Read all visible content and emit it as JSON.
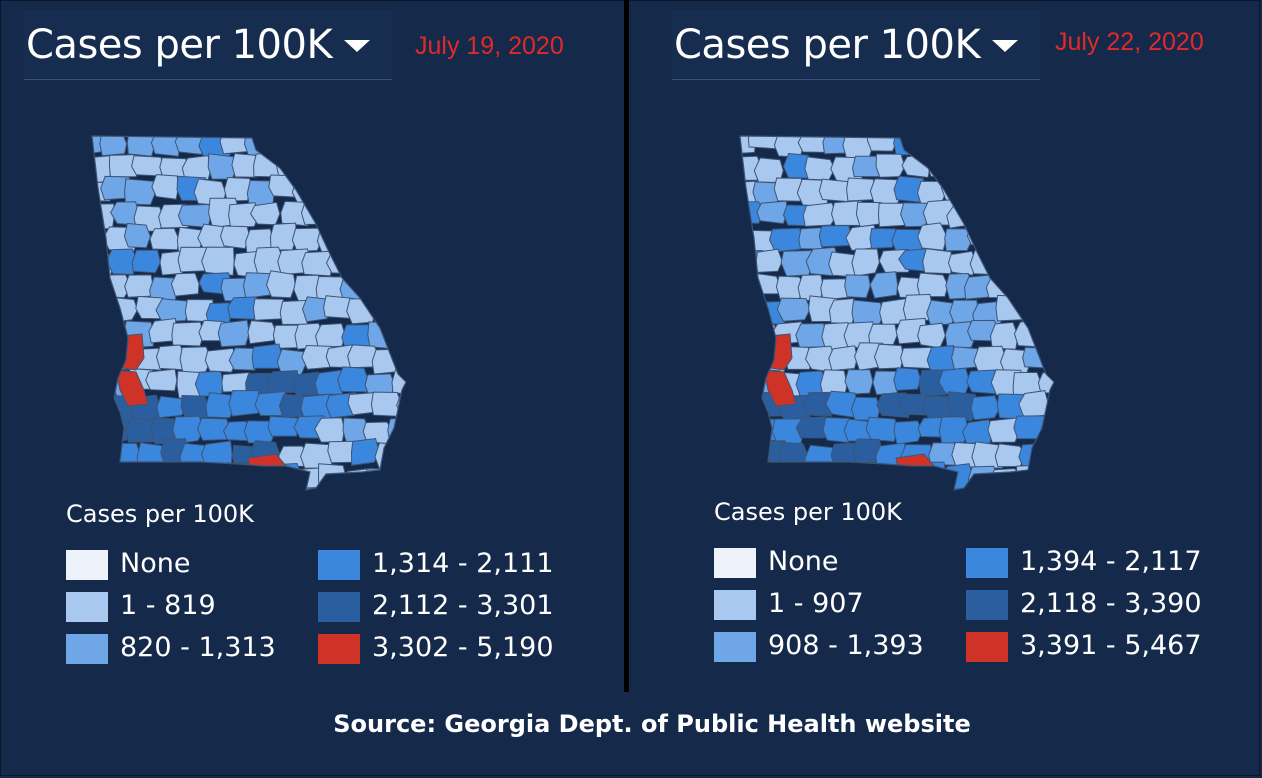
{
  "colors": {
    "background": "#15294a",
    "none": "#eef3fb",
    "bin1": "#a9c8ef",
    "bin2": "#6ea6e8",
    "bin3": "#3b87de",
    "bin4": "#2a5e9f",
    "bin5": "#cf3328",
    "date_text": "#e02a2a"
  },
  "panels": [
    {
      "metric": "Cases per 100K",
      "date": "July 19, 2020",
      "legend_title": "Cases per 100K",
      "legend": [
        {
          "label": "None",
          "color": "#eef3fb"
        },
        {
          "label": "1 - 819",
          "color": "#a9c8ef"
        },
        {
          "label": "820 - 1,313",
          "color": "#6ea6e8"
        },
        {
          "label": "1,314 - 2,111",
          "color": "#3b87de"
        },
        {
          "label": "2,112 - 3,301",
          "color": "#2a5e9f"
        },
        {
          "label": "3,302 - 5,190",
          "color": "#cf3328"
        }
      ],
      "dropdown_icon": "caret-down-icon"
    },
    {
      "metric": "Cases per 100K",
      "date": "July 22, 2020",
      "legend_title": "Cases per 100K",
      "legend": [
        {
          "label": "None",
          "color": "#eef3fb"
        },
        {
          "label": "1 - 907",
          "color": "#a9c8ef"
        },
        {
          "label": "908 - 1,393",
          "color": "#6ea6e8"
        },
        {
          "label": "1,394 - 2,117",
          "color": "#3b87de"
        },
        {
          "label": "2,118 - 3,390",
          "color": "#2a5e9f"
        },
        {
          "label": "3,391 - 5,467",
          "color": "#cf3328"
        }
      ],
      "dropdown_icon": "caret-down-icon"
    }
  ],
  "source": "Source: Georgia Dept. of Public Health website"
}
